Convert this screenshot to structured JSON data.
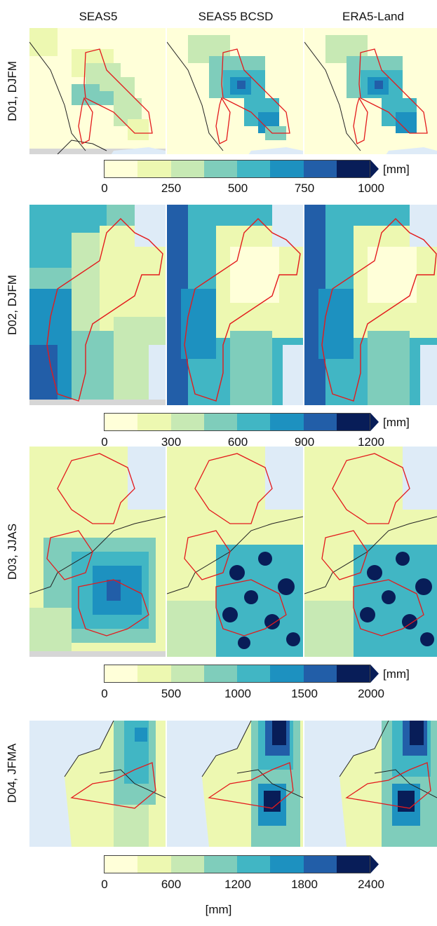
{
  "columns": [
    "SEAS5",
    "SEAS5 BCSD",
    "ERA5-Land"
  ],
  "colormap": [
    "#ffffd9",
    "#edf8b1",
    "#c7e9b4",
    "#7fcdbb",
    "#41b6c4",
    "#1d91c0",
    "#225ea8",
    "#081d58"
  ],
  "outline_color": "#e31a1c",
  "rows": [
    {
      "label": "D01, DJFM",
      "ticks": [
        "0",
        "250",
        "500",
        "750",
        "1000"
      ],
      "unit": "[mm]"
    },
    {
      "label": "D02, DJFM",
      "ticks": [
        "0",
        "300",
        "600",
        "900",
        "1200"
      ],
      "unit": "[mm]"
    },
    {
      "label": "D03, JJAS",
      "ticks": [
        "0",
        "500",
        "1000",
        "1500",
        "2000"
      ],
      "unit": "[mm]"
    },
    {
      "label": "D04, JFMA",
      "ticks": [
        "0",
        "600",
        "1200",
        "1800",
        "2400"
      ],
      "unit": "[mm]"
    }
  ],
  "bottom_unit": "[mm]"
}
